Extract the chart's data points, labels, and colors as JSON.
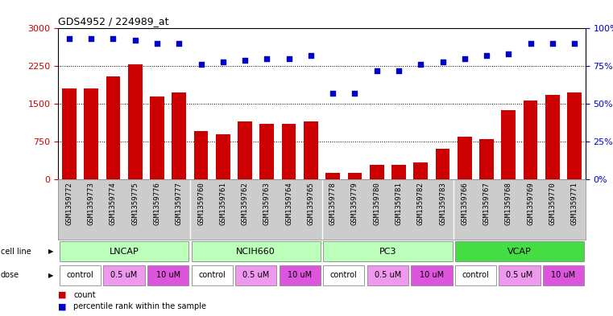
{
  "title": "GDS4952 / 224989_at",
  "samples": [
    "GSM1359772",
    "GSM1359773",
    "GSM1359774",
    "GSM1359775",
    "GSM1359776",
    "GSM1359777",
    "GSM1359760",
    "GSM1359761",
    "GSM1359762",
    "GSM1359763",
    "GSM1359764",
    "GSM1359765",
    "GSM1359778",
    "GSM1359779",
    "GSM1359780",
    "GSM1359781",
    "GSM1359782",
    "GSM1359783",
    "GSM1359766",
    "GSM1359767",
    "GSM1359768",
    "GSM1359769",
    "GSM1359770",
    "GSM1359771"
  ],
  "counts": [
    1800,
    1800,
    2050,
    2280,
    1650,
    1720,
    950,
    900,
    1150,
    1100,
    1100,
    1150,
    120,
    120,
    280,
    280,
    340,
    600,
    850,
    800,
    1380,
    1560,
    1670,
    1720
  ],
  "percentile_ranks": [
    93,
    93,
    93,
    92,
    90,
    90,
    76,
    78,
    79,
    80,
    80,
    82,
    57,
    57,
    72,
    72,
    76,
    78,
    80,
    82,
    83,
    90,
    90,
    90
  ],
  "cell_lines": [
    {
      "name": "LNCAP",
      "start": 0,
      "end": 6,
      "color": "#bbffbb"
    },
    {
      "name": "NCIH660",
      "start": 6,
      "end": 12,
      "color": "#bbffbb"
    },
    {
      "name": "PC3",
      "start": 12,
      "end": 18,
      "color": "#bbffbb"
    },
    {
      "name": "VCAP",
      "start": 18,
      "end": 24,
      "color": "#44dd44"
    }
  ],
  "doses": [
    {
      "label": "control",
      "start": 0,
      "end": 2,
      "color": "#ffffff"
    },
    {
      "label": "0.5 uM",
      "start": 2,
      "end": 4,
      "color": "#ee99ee"
    },
    {
      "label": "10 uM",
      "start": 4,
      "end": 6,
      "color": "#dd55dd"
    },
    {
      "label": "control",
      "start": 6,
      "end": 8,
      "color": "#ffffff"
    },
    {
      "label": "0.5 uM",
      "start": 8,
      "end": 10,
      "color": "#ee99ee"
    },
    {
      "label": "10 uM",
      "start": 10,
      "end": 12,
      "color": "#dd55dd"
    },
    {
      "label": "control",
      "start": 12,
      "end": 14,
      "color": "#ffffff"
    },
    {
      "label": "0.5 uM",
      "start": 14,
      "end": 16,
      "color": "#ee99ee"
    },
    {
      "label": "10 uM",
      "start": 16,
      "end": 18,
      "color": "#dd55dd"
    },
    {
      "label": "control",
      "start": 18,
      "end": 20,
      "color": "#ffffff"
    },
    {
      "label": "0.5 uM",
      "start": 20,
      "end": 22,
      "color": "#ee99ee"
    },
    {
      "label": "10 uM",
      "start": 22,
      "end": 24,
      "color": "#dd55dd"
    }
  ],
  "bar_color": "#cc0000",
  "dot_color": "#0000cc",
  "ylim_left": [
    0,
    3000
  ],
  "ylim_right": [
    0,
    100
  ],
  "yticks_left": [
    0,
    750,
    1500,
    2250,
    3000
  ],
  "yticks_right": [
    0,
    25,
    50,
    75,
    100
  ],
  "grid_values": [
    750,
    1500,
    2250
  ],
  "sample_row_bg": "#cccccc",
  "fig_bg": "#f0f0f0"
}
